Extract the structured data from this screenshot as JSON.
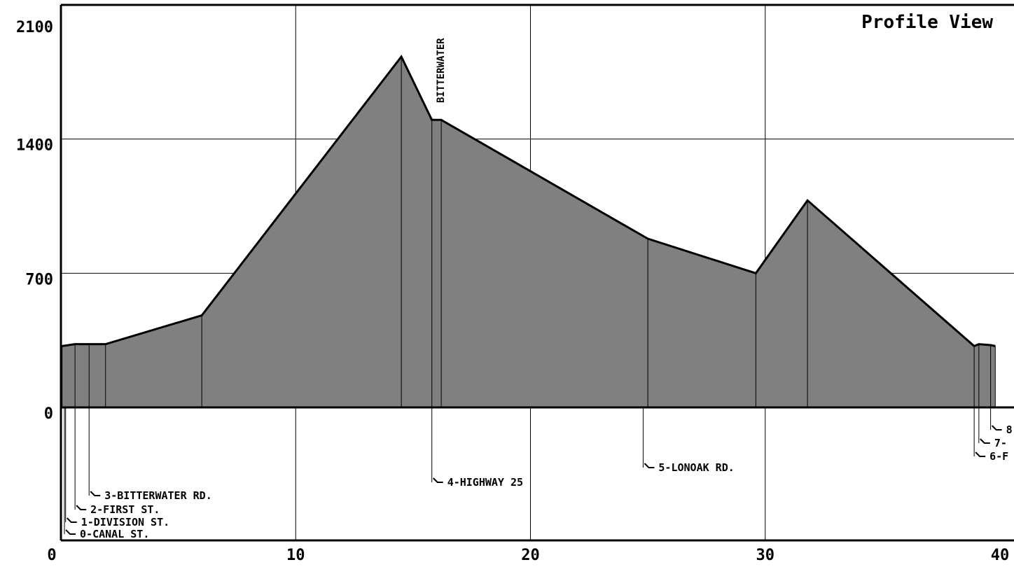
{
  "chart_data": {
    "type": "area",
    "title": "Profile View",
    "xlabel": "",
    "ylabel": "",
    "xlim": [
      0,
      40
    ],
    "ylim": [
      0,
      2100
    ],
    "x_ticks": [
      0,
      10,
      20,
      30,
      40
    ],
    "y_ticks": [
      0,
      700,
      1400,
      2100
    ],
    "x_tick_labels": [
      "0",
      "10",
      "20",
      "30",
      "40"
    ],
    "y_tick_labels": [
      "0",
      "700",
      "1400",
      "2100"
    ],
    "grid": true,
    "fill_color": "#808080",
    "line_color": "#000000",
    "series": [
      {
        "x": [
          0.05,
          0.6,
          1.2,
          1.9,
          6.0,
          14.5,
          15.8,
          16.2,
          25.0,
          29.6,
          31.8,
          38.9,
          39.1,
          39.6,
          39.8
        ],
        "y": [
          320,
          330,
          330,
          330,
          480,
          1830,
          1500,
          1500,
          880,
          700,
          1080,
          320,
          330,
          325,
          320
        ]
      }
    ],
    "stations": [
      {
        "label": "0-CANAL ST.",
        "x": 0.15
      },
      {
        "label": "1-DIVISION ST.",
        "x": 0.2
      },
      {
        "label": "2-FIRST ST.",
        "x": 0.6
      },
      {
        "label": "3-BITTERWATER RD.",
        "x": 1.2
      },
      {
        "label": "4-HIGHWAY 25",
        "x": 15.8
      },
      {
        "label": "5-LONOAK RD.",
        "x": 24.8
      },
      {
        "label": "6-F",
        "x": 38.9
      },
      {
        "label": "7-",
        "x": 39.1
      },
      {
        "label": "8",
        "x": 39.6
      }
    ],
    "annotations": [
      {
        "text": "BITTERWATER",
        "x": 16.2
      }
    ]
  }
}
